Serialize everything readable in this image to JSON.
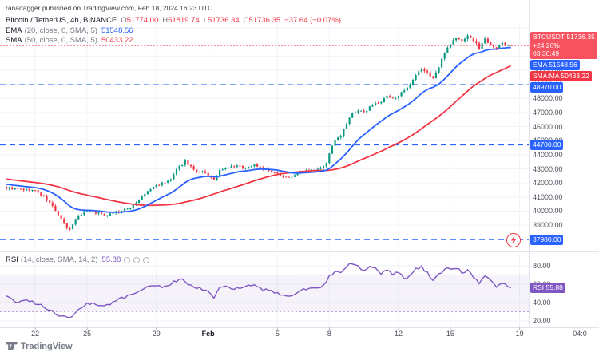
{
  "header": {
    "publish_note": "ranadagger published on TradingView.com, Feb 18, 2024 16:23 UTC"
  },
  "legend": {
    "symbol": "Bitcoin / TetherUS, 4h, BINANCE",
    "ohlc": {
      "o_label": "O",
      "o_value": "51774.00",
      "h_label": "H",
      "h_value": "51819.74",
      "l_label": "L",
      "l_value": "51736.34",
      "c_label": "C",
      "c_value": "51736.35",
      "change": "−37.64 (−0.07%)"
    },
    "ema": {
      "name": "EMA",
      "params": "(20, close, 0, SMA, 5)",
      "value": "51548.56"
    },
    "sma": {
      "name": "SMA",
      "params": "(50, close, 0, SMA, 5)",
      "value": "50433.22"
    },
    "rsi": {
      "name": "RSI",
      "params": "(14, close, SMA, 14, 2)",
      "value": "55.88"
    }
  },
  "badges": {
    "price": {
      "line1": "BTCUSDT 51736.35",
      "line2": "+24.26%",
      "line3": "03:36:49",
      "color": "#f7525f",
      "price": 51736.35
    },
    "ema": {
      "text": "EMA 51548.56",
      "color": "#2962ff",
      "price": 51548.56
    },
    "sma": {
      "text": "SMA:MA 50433.22",
      "color": "#f23645",
      "price": 50433.22
    },
    "rsi": {
      "text": "RSI 55.88",
      "color": "#7e57c2",
      "value": 55.88
    }
  },
  "levels": [
    {
      "price": 48970,
      "label": "48970.00",
      "color": "#2962ff"
    },
    {
      "price": 44700,
      "label": "44700.00",
      "color": "#2962ff"
    },
    {
      "price": 37980,
      "label": "37980.00",
      "color": "#2962ff"
    }
  ],
  "price_axis": {
    "ticks": [
      {
        "v": 50000,
        "label": "50000.00"
      },
      {
        "v": 49000,
        "label": "49000.00"
      },
      {
        "v": 48000,
        "label": "48000.00"
      },
      {
        "v": 47000,
        "label": "47000.00"
      },
      {
        "v": 46000,
        "label": "46000.00"
      },
      {
        "v": 45000,
        "label": "45000.00"
      },
      {
        "v": 44000,
        "label": "44000.00"
      },
      {
        "v": 43000,
        "label": "43000.00"
      },
      {
        "v": 42000,
        "label": "42000.00"
      },
      {
        "v": 41000,
        "label": "41000.00"
      },
      {
        "v": 40000,
        "label": "40000.00"
      },
      {
        "v": 39000,
        "label": "39000.00"
      },
      {
        "v": 38000,
        "label": "38000.00"
      }
    ]
  },
  "rsi_axis": {
    "ticks": [
      {
        "v": 80,
        "label": "80.00"
      },
      {
        "v": 60,
        "label": "60.00"
      },
      {
        "v": 40,
        "label": "40.00"
      },
      {
        "v": 20,
        "label": "20.00"
      }
    ]
  },
  "time_axis": {
    "ticks": [
      {
        "i": 10,
        "label": "22"
      },
      {
        "i": 28,
        "label": "25"
      },
      {
        "i": 52,
        "label": "29"
      },
      {
        "i": 70,
        "label": "Feb",
        "bold": true
      },
      {
        "i": 94,
        "label": "5"
      },
      {
        "i": 112,
        "label": "8"
      },
      {
        "i": 136,
        "label": "12"
      },
      {
        "i": 154,
        "label": "15"
      },
      {
        "i": 178,
        "label": "19"
      }
    ],
    "partial_label": "04:0"
  },
  "footer": {
    "logo_text": "TradingView"
  },
  "chart_data": {
    "type": "candlestick",
    "title": "Bitcoin / TetherUS, 4h, BINANCE",
    "symbol": "BTCUSDT",
    "interval": "4h",
    "x_range": "Jan 20 2024 – Feb 19 2024, 4-hour candles",
    "price_range": [
      37250,
      53400
    ],
    "rsi_range": [
      14,
      92
    ],
    "rsi_bands": [
      70,
      30
    ],
    "levels": [
      48970,
      44700,
      37980
    ],
    "n_candles": 176,
    "last": {
      "o": 51774.0,
      "h": 51819.74,
      "l": 51736.34,
      "c": 51736.35,
      "change": -37.64,
      "change_pct": -0.07
    },
    "indicators": {
      "ema": {
        "length": 20,
        "value": 51548.56,
        "color": "#2962ff"
      },
      "sma": {
        "length": 50,
        "value": 50433.22,
        "color": "#f23645"
      },
      "rsi": {
        "length": 14,
        "value": 55.88,
        "color": "#7e57c2"
      }
    },
    "prehistory": {
      "start": 42900,
      "end": 41700,
      "count": 50
    },
    "close_anchors": [
      [
        0,
        41650
      ],
      [
        4,
        41550
      ],
      [
        8,
        41500
      ],
      [
        10,
        41450
      ],
      [
        13,
        41000
      ],
      [
        16,
        40350
      ],
      [
        19,
        39400
      ],
      [
        21,
        38800
      ],
      [
        22,
        38650
      ],
      [
        23,
        39100
      ],
      [
        25,
        39700
      ],
      [
        28,
        40050
      ],
      [
        31,
        39900
      ],
      [
        34,
        39700
      ],
      [
        37,
        39900
      ],
      [
        40,
        40000
      ],
      [
        43,
        40250
      ],
      [
        46,
        40800
      ],
      [
        49,
        41400
      ],
      [
        52,
        41850
      ],
      [
        55,
        42000
      ],
      [
        57,
        42250
      ],
      [
        59,
        42900
      ],
      [
        61,
        43350
      ],
      [
        62,
        43550
      ],
      [
        64,
        43150
      ],
      [
        66,
        42700
      ],
      [
        68,
        42750
      ],
      [
        70,
        42550
      ],
      [
        72,
        42150
      ],
      [
        74,
        42850
      ],
      [
        77,
        43100
      ],
      [
        80,
        43200
      ],
      [
        83,
        43050
      ],
      [
        86,
        43300
      ],
      [
        89,
        43000
      ],
      [
        92,
        42750
      ],
      [
        95,
        42550
      ],
      [
        98,
        42350
      ],
      [
        100,
        42600
      ],
      [
        103,
        42850
      ],
      [
        106,
        42950
      ],
      [
        109,
        43100
      ],
      [
        111,
        43350
      ],
      [
        112,
        44150
      ],
      [
        114,
        45000
      ],
      [
        116,
        45350
      ],
      [
        118,
        46200
      ],
      [
        120,
        46900
      ],
      [
        122,
        47150
      ],
      [
        124,
        46950
      ],
      [
        126,
        47450
      ],
      [
        128,
        47600
      ],
      [
        130,
        47750
      ],
      [
        132,
        48150
      ],
      [
        134,
        47950
      ],
      [
        136,
        48250
      ],
      [
        138,
        48500
      ],
      [
        140,
        48900
      ],
      [
        142,
        49600
      ],
      [
        144,
        50100
      ],
      [
        146,
        49800
      ],
      [
        148,
        49450
      ],
      [
        150,
        50200
      ],
      [
        152,
        51300
      ],
      [
        154,
        51900
      ],
      [
        156,
        52300
      ],
      [
        158,
        52050
      ],
      [
        160,
        52500
      ],
      [
        162,
        52100
      ],
      [
        164,
        51600
      ],
      [
        166,
        52200
      ],
      [
        168,
        51850
      ],
      [
        170,
        51500
      ],
      [
        172,
        51950
      ],
      [
        174,
        51650
      ],
      [
        175,
        51736.35
      ]
    ],
    "rsi_anchors": [
      [
        0,
        46
      ],
      [
        4,
        40
      ],
      [
        8,
        42
      ],
      [
        12,
        37
      ],
      [
        16,
        30
      ],
      [
        20,
        24
      ],
      [
        22,
        22
      ],
      [
        25,
        33
      ],
      [
        28,
        40
      ],
      [
        31,
        38
      ],
      [
        34,
        36
      ],
      [
        38,
        42
      ],
      [
        42,
        47
      ],
      [
        46,
        53
      ],
      [
        50,
        58
      ],
      [
        54,
        57
      ],
      [
        58,
        62
      ],
      [
        61,
        66
      ],
      [
        64,
        58
      ],
      [
        68,
        55
      ],
      [
        70,
        52
      ],
      [
        72,
        46
      ],
      [
        74,
        57
      ],
      [
        78,
        56
      ],
      [
        82,
        55
      ],
      [
        86,
        60
      ],
      [
        89,
        54
      ],
      [
        92,
        52
      ],
      [
        95,
        49
      ],
      [
        98,
        46
      ],
      [
        101,
        52
      ],
      [
        104,
        55
      ],
      [
        107,
        56
      ],
      [
        110,
        58
      ],
      [
        112,
        68
      ],
      [
        114,
        74
      ],
      [
        116,
        73
      ],
      [
        118,
        80
      ],
      [
        120,
        83
      ],
      [
        122,
        79
      ],
      [
        124,
        75
      ],
      [
        126,
        80
      ],
      [
        128,
        78
      ],
      [
        130,
        72
      ],
      [
        132,
        76
      ],
      [
        134,
        71
      ],
      [
        136,
        73
      ],
      [
        138,
        66
      ],
      [
        140,
        70
      ],
      [
        142,
        76
      ],
      [
        144,
        79
      ],
      [
        146,
        72
      ],
      [
        148,
        64
      ],
      [
        150,
        70
      ],
      [
        152,
        76
      ],
      [
        154,
        77
      ],
      [
        156,
        78
      ],
      [
        158,
        72
      ],
      [
        160,
        75
      ],
      [
        162,
        68
      ],
      [
        164,
        61
      ],
      [
        166,
        69
      ],
      [
        168,
        64
      ],
      [
        170,
        58
      ],
      [
        172,
        62
      ],
      [
        174,
        57
      ],
      [
        175,
        55.88
      ]
    ],
    "colors": {
      "up": "#089981",
      "down": "#f23645",
      "ema": "#2962ff",
      "sma": "#f23645",
      "rsi": "#7e57c2",
      "level": "#2962ff",
      "grid": "#f0f3fa",
      "separator": "#e0e3eb"
    }
  }
}
